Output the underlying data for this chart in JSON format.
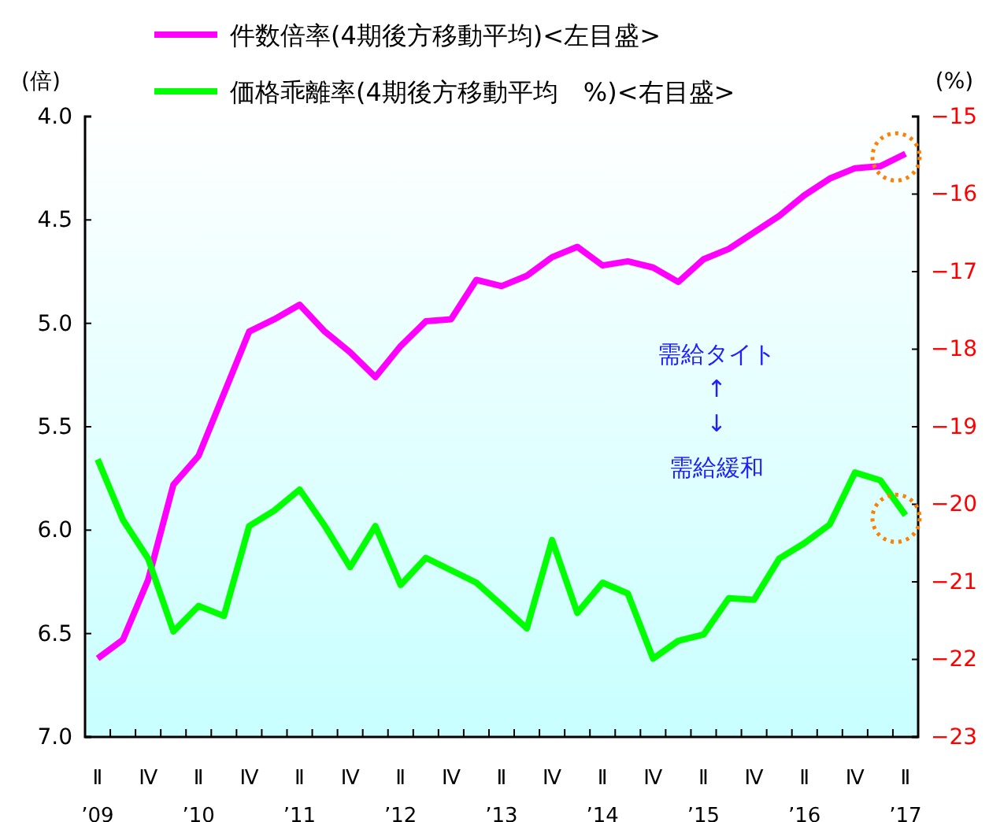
{
  "chart_data": {
    "type": "line",
    "ylabel": "(倍)",
    "y2label": "(%)",
    "categories": [
      "Ⅱ\n’09",
      null,
      "Ⅳ",
      null,
      "Ⅱ\n’10",
      null,
      "Ⅳ",
      null,
      "Ⅱ\n’11",
      null,
      "Ⅳ",
      null,
      "Ⅱ\n’12",
      null,
      "Ⅳ",
      null,
      "Ⅱ\n’13",
      null,
      "Ⅳ",
      null,
      "Ⅱ\n’14",
      null,
      "Ⅳ",
      null,
      "Ⅱ\n’15",
      null,
      "Ⅳ",
      null,
      "Ⅱ\n’16",
      null,
      "Ⅳ",
      null,
      "Ⅱ\n’17"
    ],
    "series": [
      {
        "name": "件数倍率(4期後方移動平均)<左目盛>",
        "color": "#ff00ff",
        "values": [
          6.62,
          6.53,
          6.24,
          5.78,
          5.64,
          5.34,
          5.04,
          4.98,
          4.91,
          5.04,
          5.14,
          5.26,
          5.11,
          4.99,
          4.98,
          4.79,
          4.82,
          4.77,
          4.68,
          4.63,
          4.72,
          4.7,
          4.73,
          4.8,
          4.69,
          4.64,
          4.56,
          4.48,
          4.38,
          4.3,
          4.25,
          4.24,
          4.18
        ]
      },
      {
        "name": "価格乖離率(4期後方移動平均　%)<右目盛>",
        "color": "#00ff00",
        "axis": "y2",
        "values": [
          -19.42,
          -20.2,
          -20.7,
          -21.64,
          -21.31,
          -21.44,
          -20.28,
          -20.08,
          -19.81,
          -20.28,
          -20.81,
          -20.28,
          -21.04,
          -20.69,
          -20.85,
          -21.01,
          -21.3,
          -21.6,
          -20.46,
          -21.4,
          -21.01,
          -21.15,
          -21.99,
          -21.76,
          -21.68,
          -21.21,
          -21.23,
          -20.7,
          -20.5,
          -20.26,
          -19.59,
          -19.69,
          -20.14
        ]
      }
    ],
    "ylim": [
      7.0,
      4.0
    ],
    "yticks": [
      {
        "value": 4,
        "label": "4.0"
      },
      {
        "value": 4.5,
        "label": "4.5"
      },
      {
        "value": 5,
        "label": "5.0"
      },
      {
        "value": 5.5,
        "label": "5.5"
      },
      {
        "value": 6,
        "label": "6.0"
      },
      {
        "value": 6.5,
        "label": "6.5"
      },
      {
        "value": 7,
        "label": "7.0"
      }
    ],
    "y2lim": [
      -23,
      -15
    ],
    "y2ticks": [
      -15,
      -16,
      -17,
      -18,
      -19,
      -20,
      -21,
      -22,
      -23
    ],
    "annotations": [
      "需給タイト",
      "↑",
      "↓",
      "需給緩和"
    ],
    "legend": "top",
    "grid": false
  }
}
